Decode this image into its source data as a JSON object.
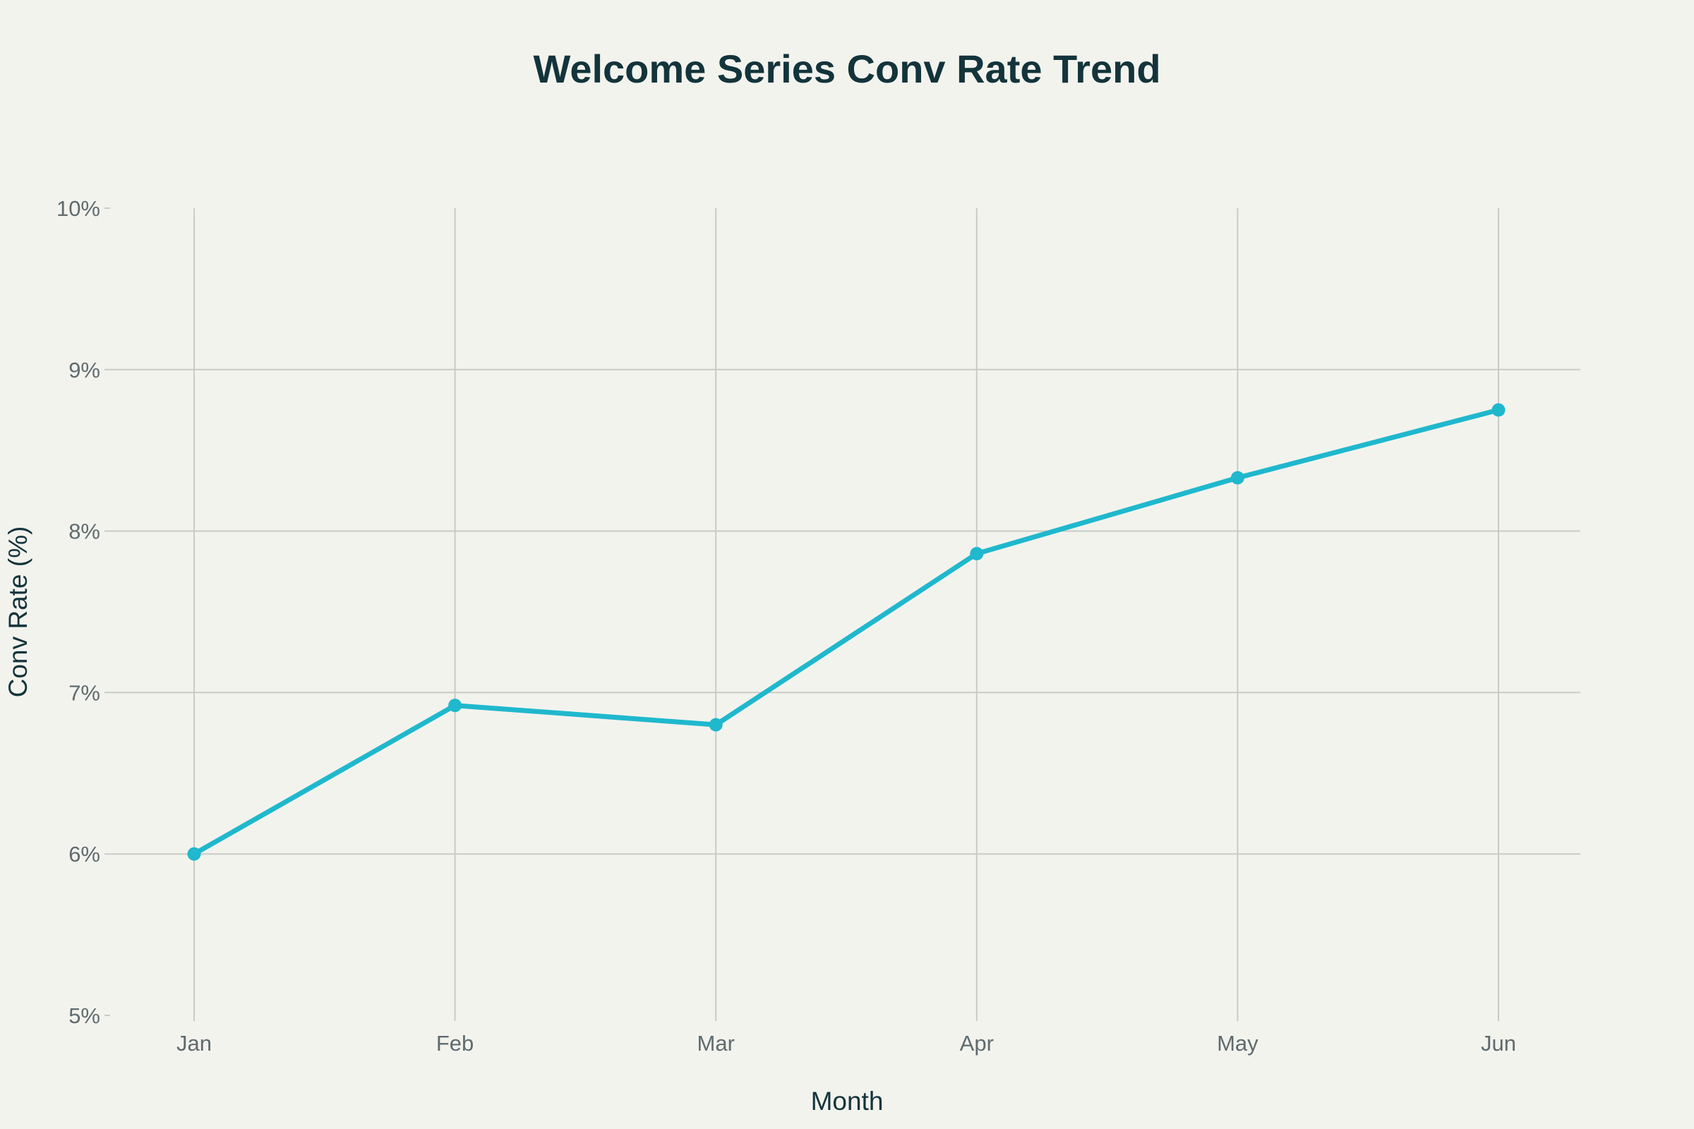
{
  "chart_data": {
    "type": "line",
    "title": "Welcome Series Conv Rate Trend",
    "xlabel": "Month",
    "ylabel": "Conv Rate (%)",
    "categories": [
      "Jan",
      "Feb",
      "Mar",
      "Apr",
      "May",
      "Jun"
    ],
    "series": [
      {
        "name": "Conv Rate",
        "values": [
          6.0,
          6.92,
          6.8,
          7.86,
          8.33,
          8.75
        ],
        "color": "#1fb8cd"
      }
    ],
    "ylim": [
      5,
      10
    ],
    "yticks": [
      5,
      6,
      7,
      8,
      9,
      10
    ],
    "ytick_labels": [
      "5%",
      "6%",
      "7%",
      "8%",
      "9%",
      "10%"
    ],
    "grid": true,
    "legend": "none"
  }
}
